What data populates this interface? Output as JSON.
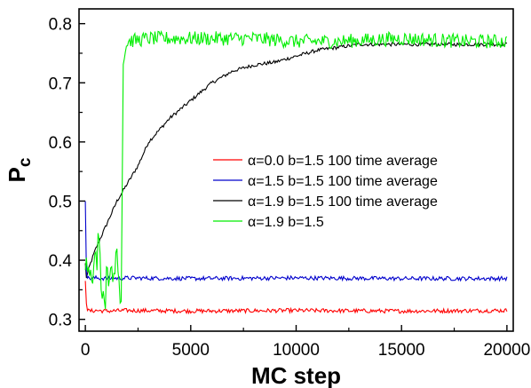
{
  "chart_data": {
    "type": "line",
    "title": "",
    "xlabel": "MC step",
    "ylabel_main": "P",
    "ylabel_sub": "c",
    "xlim": [
      -300,
      20300
    ],
    "ylim": [
      0.28,
      0.825
    ],
    "xticks": [
      0,
      5000,
      10000,
      15000,
      20000
    ],
    "xtick_labels": [
      "0",
      "5000",
      "10000",
      "15000",
      "20000"
    ],
    "yticks": [
      0.3,
      0.4,
      0.5,
      0.6,
      0.7,
      0.8
    ],
    "ytick_labels": [
      "0.3",
      "0.4",
      "0.5",
      "0.6",
      "0.7",
      "0.8"
    ],
    "grid": false,
    "legend_position": "center-right",
    "series": [
      {
        "name": "α=0.0 b=1.5 100 time average",
        "greek": "α",
        "label_rest": "=0.0 b=1.5 100 time average",
        "color": "#ff0000",
        "x": [
          0,
          30,
          60,
          100,
          200,
          500,
          1000,
          2000,
          5000,
          10000,
          15000,
          20000
        ],
        "y": [
          0.365,
          0.34,
          0.32,
          0.315,
          0.314,
          0.315,
          0.314,
          0.315,
          0.314,
          0.315,
          0.314,
          0.315
        ],
        "noise": 0.0035
      },
      {
        "name": "α=1.5 b=1.5 100 time average",
        "greek": "α",
        "label_rest": "=1.5 b=1.5 100 time average",
        "color": "#0000cc",
        "x": [
          0,
          20,
          50,
          100,
          200,
          500,
          1000,
          2000,
          5000,
          10000,
          15000,
          20000
        ],
        "y": [
          0.5,
          0.43,
          0.38,
          0.37,
          0.369,
          0.37,
          0.369,
          0.37,
          0.369,
          0.37,
          0.369,
          0.369
        ],
        "noise": 0.0035
      },
      {
        "name": "α=1.9 b=1.5 100 time average",
        "greek": "α",
        "label_rest": "=1.9 b=1.5 100 time average",
        "color": "#000000",
        "x": [
          0,
          50,
          200,
          500,
          1000,
          1500,
          2000,
          2500,
          3000,
          4000,
          5000,
          6000,
          7000,
          8000,
          9000,
          10000,
          11000,
          12000,
          13000,
          14000,
          15000,
          17000,
          20000
        ],
        "y": [
          0.395,
          0.37,
          0.39,
          0.42,
          0.46,
          0.5,
          0.53,
          0.56,
          0.6,
          0.64,
          0.67,
          0.7,
          0.72,
          0.73,
          0.735,
          0.745,
          0.755,
          0.76,
          0.765,
          0.765,
          0.765,
          0.765,
          0.765
        ],
        "noise": 0.003
      },
      {
        "name": "α=1.9 b=1.5",
        "greek": "α",
        "label_rest": "=1.9 b=1.5",
        "color": "#00ee00",
        "x": [
          0,
          100,
          300,
          600,
          900,
          1200,
          1500,
          1700,
          1800,
          2000,
          3000,
          5000,
          8000,
          10000,
          12000,
          15000,
          18000,
          20000
        ],
        "y": [
          0.37,
          0.4,
          0.36,
          0.42,
          0.35,
          0.39,
          0.4,
          0.34,
          0.74,
          0.77,
          0.775,
          0.775,
          0.775,
          0.77,
          0.77,
          0.775,
          0.77,
          0.77
        ],
        "noise": 0.012
      }
    ]
  }
}
